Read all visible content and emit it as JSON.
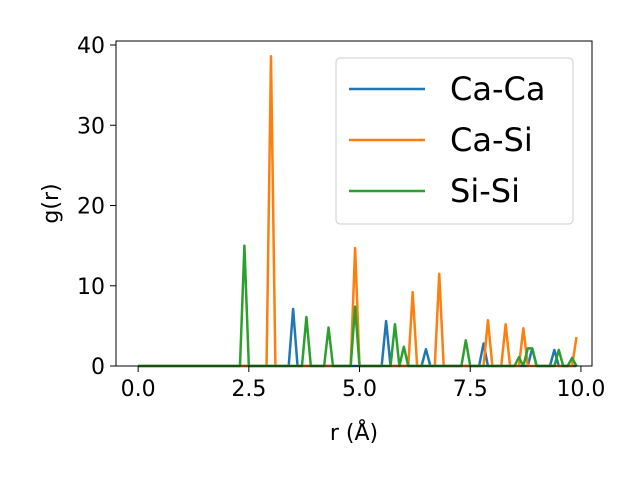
{
  "chart_data": {
    "type": "line",
    "title": "",
    "xlabel": "r (Å)",
    "ylabel": "g(r)",
    "xlim": [
      -0.5,
      10.25
    ],
    "ylim": [
      0,
      40.5
    ],
    "xticks": [
      "0.0",
      "2.5",
      "5.0",
      "7.5",
      "10.0"
    ],
    "yticks": [
      "0",
      "10",
      "20",
      "30",
      "40"
    ],
    "grid": false,
    "legend_position": "top-right",
    "series": [
      {
        "name": "Ca-Ca",
        "color": "#1f77b4",
        "x": [
          0.0,
          3.4,
          3.5,
          3.6,
          5.5,
          5.6,
          5.7,
          6.4,
          6.5,
          6.6,
          7.7,
          7.8,
          7.9,
          8.8,
          8.9,
          9.0,
          9.3,
          9.4,
          9.5,
          9.9
        ],
        "y": [
          0,
          0,
          7.1,
          0,
          0,
          5.6,
          0,
          0,
          2.1,
          0,
          0,
          2.8,
          0,
          0,
          2.2,
          0,
          0,
          2.0,
          0,
          0
        ]
      },
      {
        "name": "Ca-Si",
        "color": "#ff7f0e",
        "x": [
          0.0,
          2.9,
          3.0,
          3.1,
          4.8,
          4.9,
          5.0,
          6.1,
          6.2,
          6.3,
          6.7,
          6.8,
          6.9,
          7.8,
          7.9,
          8.0,
          8.2,
          8.3,
          8.4,
          8.6,
          8.7,
          8.8,
          9.8,
          9.9
        ],
        "y": [
          0,
          0,
          38.6,
          0,
          0,
          14.7,
          0,
          0,
          9.2,
          0,
          0,
          11.5,
          0,
          0,
          5.7,
          0,
          0,
          5.2,
          0,
          0,
          4.7,
          0,
          0,
          3.6
        ]
      },
      {
        "name": "Si-Si",
        "color": "#2ca02c",
        "x": [
          0.0,
          2.3,
          2.4,
          2.5,
          3.7,
          3.8,
          3.9,
          4.2,
          4.3,
          4.4,
          4.8,
          4.9,
          5.0,
          5.7,
          5.8,
          5.9,
          6.0,
          6.1,
          7.3,
          7.4,
          7.5,
          8.5,
          8.6,
          8.7,
          8.8,
          8.9,
          9.0,
          9.1,
          9.4,
          9.5,
          9.6,
          9.7,
          9.8,
          9.9
        ],
        "y": [
          0,
          0,
          15.0,
          0,
          0,
          6.1,
          0,
          0,
          4.8,
          0,
          0,
          7.4,
          0,
          0,
          5.2,
          0,
          2.4,
          0,
          0,
          3.2,
          0,
          0,
          1.1,
          0,
          2.2,
          2.2,
          0,
          0,
          0,
          2.0,
          0,
          0,
          1.0,
          0
        ]
      }
    ]
  }
}
